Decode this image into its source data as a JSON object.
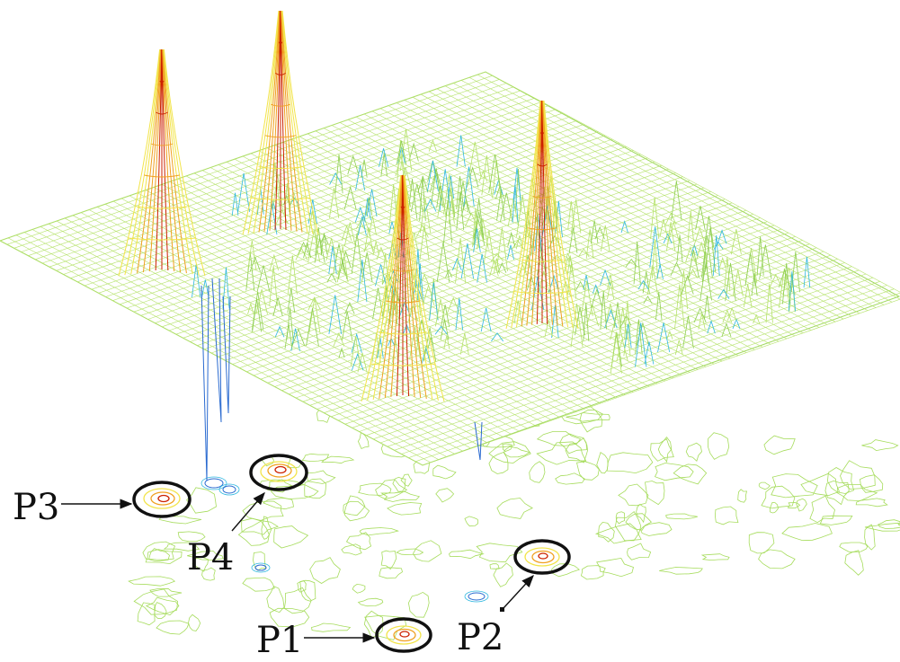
{
  "figure": {
    "peaks": [
      {
        "id": "p3-peak",
        "color": "#cc2200"
      },
      {
        "id": "p4-peak",
        "color": "#cc2200"
      },
      {
        "id": "p1-peak",
        "color": "#cc2200"
      },
      {
        "id": "p2-peak",
        "color": "#cc2200"
      }
    ],
    "colors": {
      "mesh": "#b5e26a",
      "mesh_dark": "#8fcf52",
      "contour": "#a6dc5c",
      "peak_low": "#f2e44a",
      "peak_mid": "#f0a020",
      "peak_high": "#cc2200",
      "dip": "#2a6ad0",
      "dip_light": "#30b8e0",
      "circle": "#111111"
    },
    "labels": {
      "p1": "P1",
      "p2": "P2",
      "p3": "P3",
      "p4": "P4"
    }
  }
}
